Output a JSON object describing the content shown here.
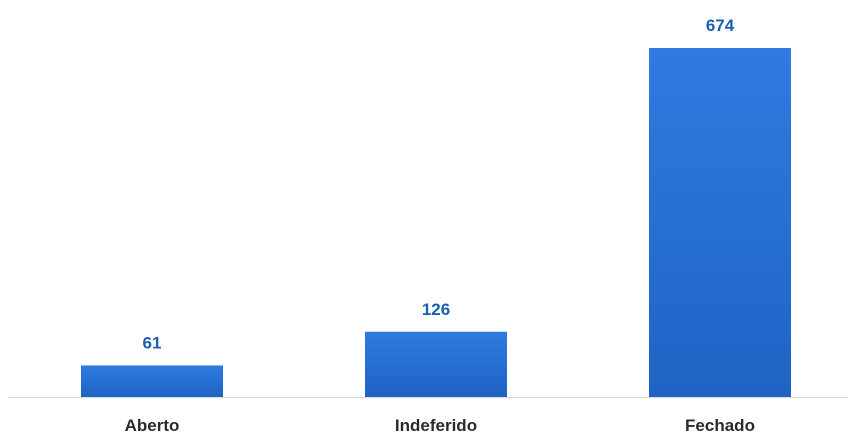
{
  "chart_data": {
    "type": "bar",
    "categories": [
      "Aberto",
      "Indeferido",
      "Fechado"
    ],
    "values": [
      61,
      126,
      674
    ],
    "data_labels": [
      "61",
      "126",
      "674"
    ],
    "title": "",
    "xlabel": "",
    "ylabel": "",
    "ylim": [
      0,
      674
    ],
    "grid": false,
    "legend": "none",
    "colors": {
      "bar_top": "#2f7be0",
      "bar_bottom": "#1f63c4",
      "label": "#1a5fb4",
      "tick": "#2b2b2b",
      "axis": "#d9d9d9"
    }
  }
}
